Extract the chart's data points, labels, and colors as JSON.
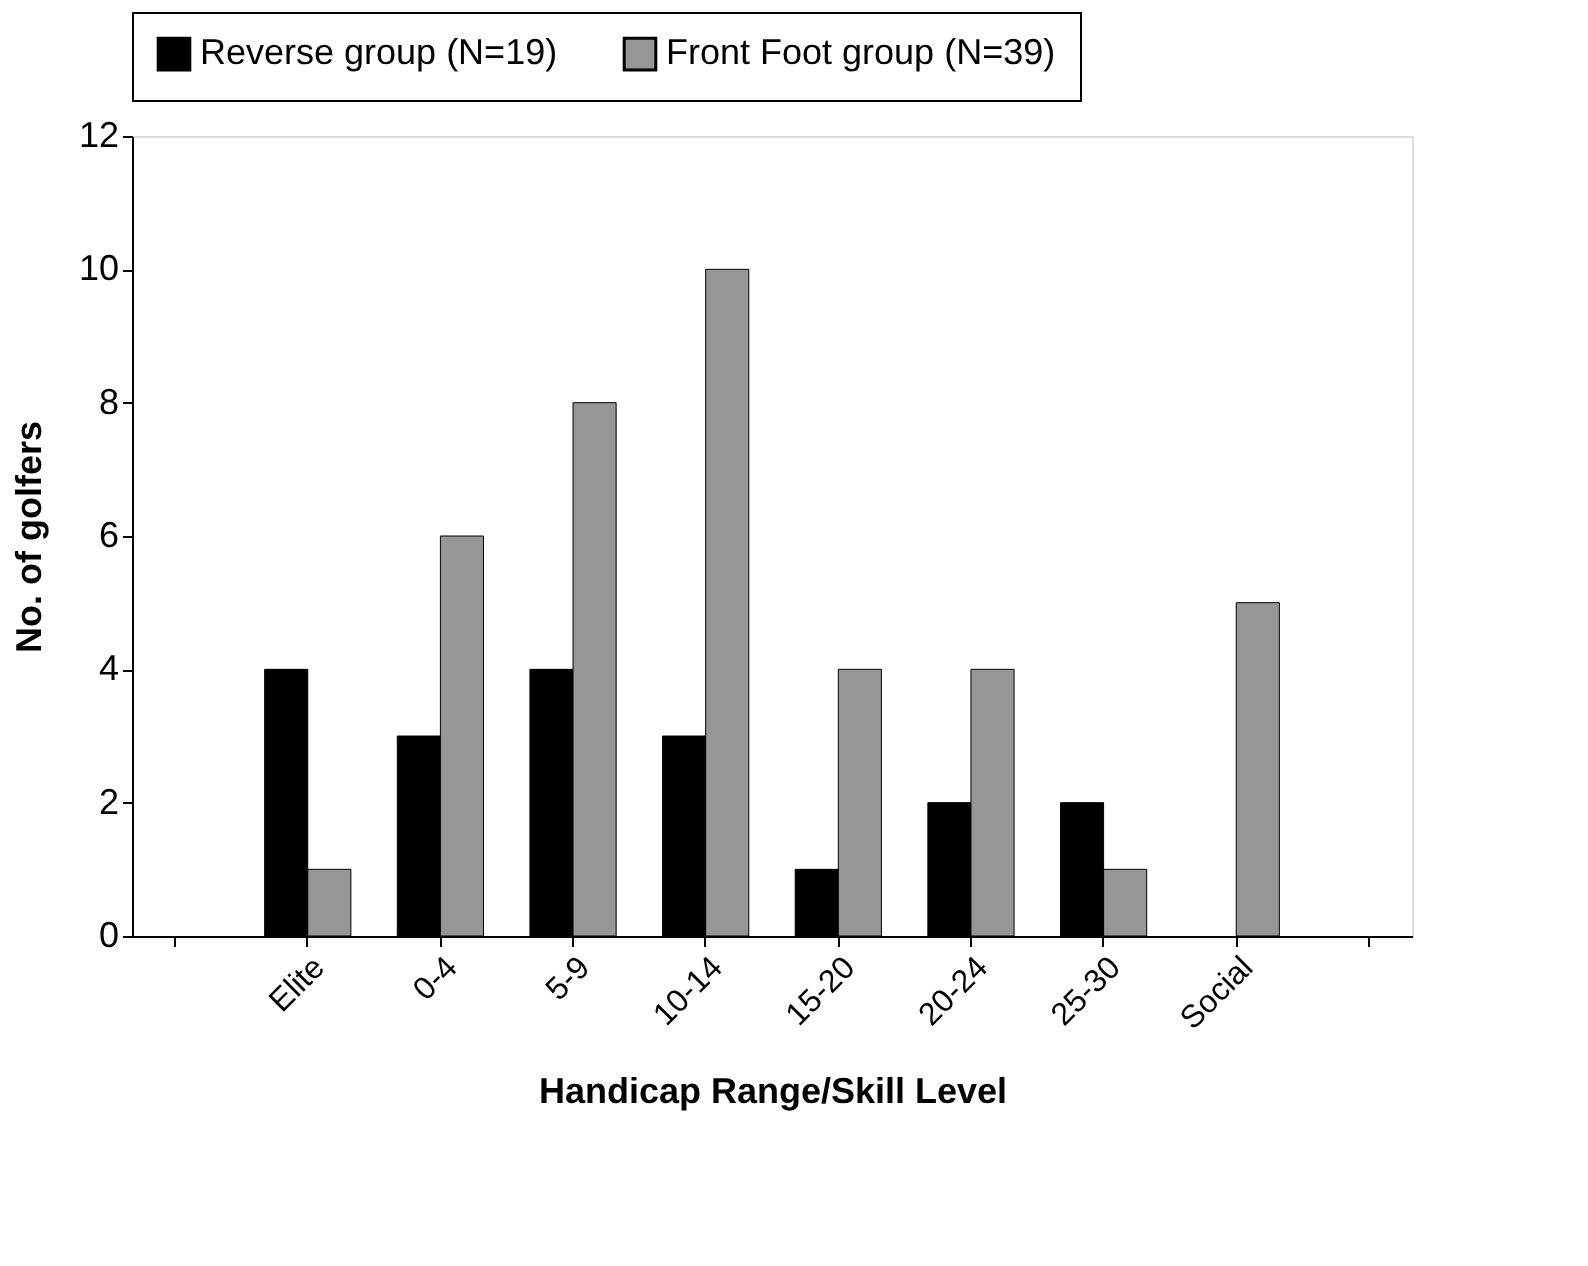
{
  "chart_data": {
    "type": "bar",
    "xlabel": "Handicap Range/Skill Level",
    "ylabel": "No. of golfers",
    "categories": [
      null,
      "Elite",
      "0-4",
      "5-9",
      "10-14",
      "15-20",
      "20-24",
      "25-30",
      "Social",
      null
    ],
    "series": [
      {
        "name": "Reverse group (N=19)",
        "color": "#000000",
        "values": [
          null,
          4,
          3,
          4,
          3,
          1,
          2,
          2,
          null,
          null
        ]
      },
      {
        "name": "Front Foot group (N=39)",
        "color": "#969696",
        "values": [
          null,
          1,
          6,
          8,
          10,
          4,
          4,
          1,
          5,
          null
        ]
      }
    ],
    "ylim": [
      0,
      12
    ],
    "yticks": [
      0,
      2,
      4,
      6,
      8,
      10,
      12
    ],
    "grid": false,
    "legend": "top"
  }
}
